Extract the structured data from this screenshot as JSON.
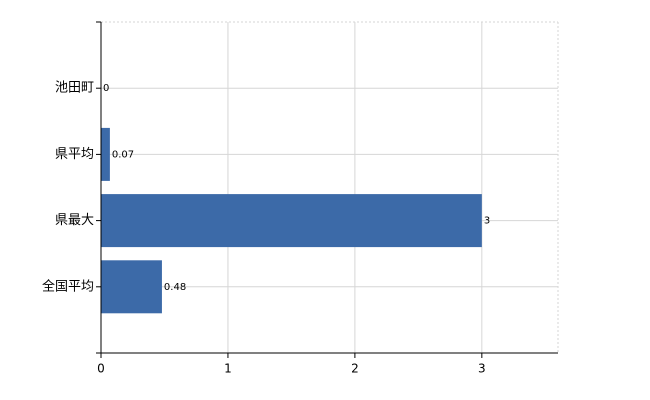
{
  "chart_data": {
    "type": "bar",
    "orientation": "horizontal",
    "categories": [
      "池田町",
      "県平均",
      "県最大",
      "全国平均"
    ],
    "values": [
      0,
      0.07,
      3,
      0.48
    ],
    "color": "#3c6aa8",
    "xlim": [
      0,
      3.6
    ],
    "xticks": [
      0,
      1,
      2,
      3
    ],
    "grid": true
  }
}
